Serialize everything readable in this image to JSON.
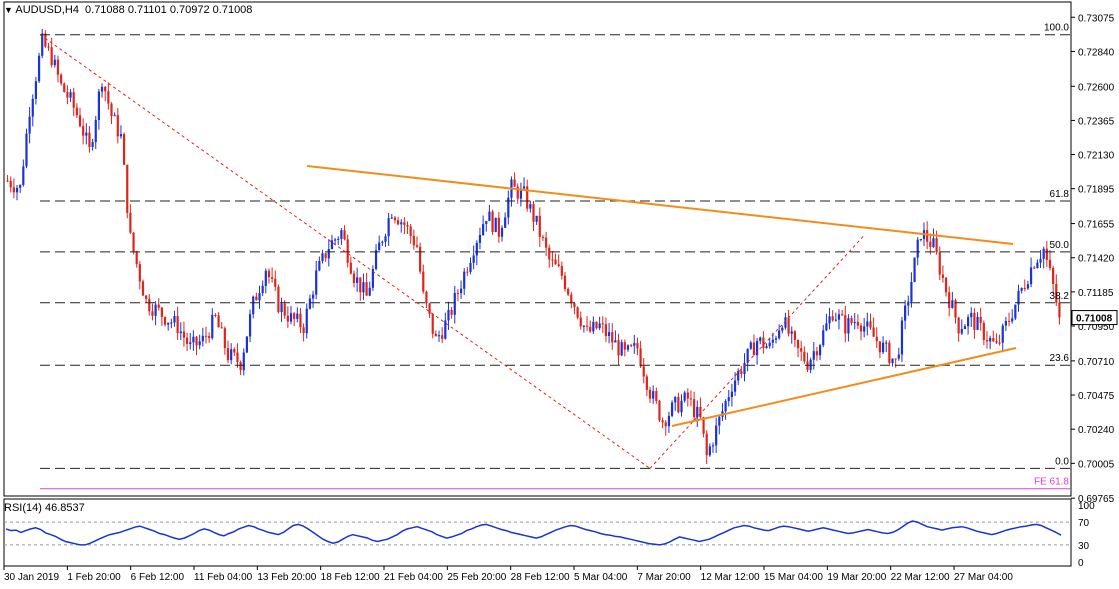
{
  "header": {
    "symbol": "AUDUSD,H4",
    "ohlc": "0.71088 0.71101 0.70972 0.71008"
  },
  "price_axis": {
    "min": 0.6978,
    "max": 0.7318,
    "ticks": [
      "0.73075",
      "0.72840",
      "0.72600",
      "0.72365",
      "0.72130",
      "0.71895",
      "0.71655",
      "0.71420",
      "0.71185",
      "0.70950",
      "0.70710",
      "0.70475",
      "0.70240",
      "0.70005",
      "0.69765"
    ],
    "current_label": "0.71008",
    "current_value": 0.71008
  },
  "fib_levels": [
    {
      "label": "100.0",
      "value": 0.72955
    },
    {
      "label": "61.8",
      "value": 0.7181
    },
    {
      "label": "50.0",
      "value": 0.7146
    },
    {
      "label": "38.2",
      "value": 0.7111
    },
    {
      "label": "23.6",
      "value": 0.7068
    },
    {
      "label": "0.0",
      "value": 0.6997
    }
  ],
  "fe_level": {
    "label": "FE 61.8",
    "value": 0.6983
  },
  "x_axis_labels": [
    "30 Jan 2019",
    "1 Feb 20:00",
    "6 Feb 12:00",
    "11 Feb 04:00",
    "13 Feb 20:00",
    "18 Feb 12:00",
    "21 Feb 04:00",
    "25 Feb 20:00",
    "28 Feb 12:00",
    "5 Mar 04:00",
    "7 Mar 20:00",
    "12 Mar 12:00",
    "15 Mar 04:00",
    "19 Mar 20:00",
    "22 Mar 12:00",
    "27 Mar 04:00"
  ],
  "rsi": {
    "label": "RSI(14) 46.8537",
    "levels": [
      "100",
      "70",
      "30",
      "0"
    ],
    "values": [
      58,
      55,
      56,
      52,
      55,
      58,
      60,
      57,
      51,
      48,
      45,
      40,
      36,
      34,
      32,
      30,
      30,
      33,
      37,
      41,
      45,
      48,
      50,
      52,
      55,
      58,
      61,
      63,
      60,
      57,
      54,
      50,
      48,
      45,
      42,
      40,
      42,
      46,
      50,
      55,
      58,
      56,
      52,
      48,
      46,
      50,
      53,
      58,
      61,
      64,
      62,
      58,
      55,
      52,
      50,
      48,
      52,
      58,
      64,
      66,
      63,
      58,
      52,
      46,
      40,
      36,
      33,
      35,
      40,
      45,
      48,
      46,
      44,
      42,
      38,
      36,
      38,
      40,
      44,
      48,
      54,
      58,
      60,
      62,
      59,
      56,
      53,
      48,
      45,
      42,
      44,
      47,
      50,
      55,
      58,
      62,
      65,
      66,
      63,
      60,
      57,
      55,
      52,
      50,
      48,
      46,
      44,
      42,
      44,
      48,
      52,
      56,
      59,
      62,
      64,
      63,
      60,
      57,
      55,
      53,
      50,
      48,
      47,
      45,
      44,
      42,
      40,
      38,
      36,
      34,
      32,
      31,
      30,
      32,
      35,
      40,
      44,
      42,
      40,
      38,
      36,
      38,
      40,
      44,
      48,
      52,
      56,
      60,
      62,
      64,
      63,
      60,
      58,
      56,
      55,
      58,
      61,
      63,
      62,
      60,
      58,
      56,
      54,
      56,
      58,
      60,
      58,
      56,
      54,
      52,
      50,
      51,
      53,
      55,
      57,
      55,
      53,
      51,
      50,
      52,
      56,
      62,
      68,
      72,
      70,
      66,
      62,
      60,
      58,
      56,
      58,
      60,
      61,
      62,
      60,
      57,
      54,
      52,
      50,
      48,
      50,
      53,
      56,
      58,
      60,
      62,
      63,
      65,
      66,
      64,
      60,
      56,
      52,
      47
    ]
  },
  "chart_data": {
    "type": "candlestick",
    "title": "AUDUSD,H4",
    "ylim": [
      0.6978,
      0.7318
    ],
    "anchors": [
      [
        0,
        0.7195
      ],
      [
        4,
        0.719
      ],
      [
        7,
        0.7245
      ],
      [
        11,
        0.729
      ],
      [
        14,
        0.728
      ],
      [
        17,
        0.726
      ],
      [
        20,
        0.725
      ],
      [
        23,
        0.7236
      ],
      [
        26,
        0.7215
      ],
      [
        30,
        0.7266
      ],
      [
        33,
        0.724
      ],
      [
        36,
        0.7225
      ],
      [
        39,
        0.7155
      ],
      [
        44,
        0.7112
      ],
      [
        49,
        0.7103
      ],
      [
        54,
        0.7095
      ],
      [
        58,
        0.708
      ],
      [
        62,
        0.7085
      ],
      [
        66,
        0.71
      ],
      [
        70,
        0.7075
      ],
      [
        74,
        0.707
      ],
      [
        78,
        0.711
      ],
      [
        82,
        0.7135
      ],
      [
        86,
        0.711
      ],
      [
        90,
        0.71
      ],
      [
        94,
        0.7095
      ],
      [
        98,
        0.713
      ],
      [
        102,
        0.715
      ],
      [
        106,
        0.716
      ],
      [
        110,
        0.713
      ],
      [
        114,
        0.7115
      ],
      [
        118,
        0.715
      ],
      [
        122,
        0.7175
      ],
      [
        126,
        0.7165
      ],
      [
        130,
        0.715
      ],
      [
        132,
        0.7115
      ],
      [
        136,
        0.7085
      ],
      [
        140,
        0.71
      ],
      [
        144,
        0.7125
      ],
      [
        148,
        0.715
      ],
      [
        152,
        0.7172
      ],
      [
        156,
        0.716
      ],
      [
        160,
        0.719
      ],
      [
        164,
        0.7185
      ],
      [
        168,
        0.7165
      ],
      [
        172,
        0.714
      ],
      [
        176,
        0.713
      ],
      [
        180,
        0.711
      ],
      [
        184,
        0.709
      ],
      [
        188,
        0.7095
      ],
      [
        192,
        0.7085
      ],
      [
        196,
        0.7075
      ],
      [
        200,
        0.708
      ],
      [
        204,
        0.705
      ],
      [
        208,
        0.703
      ],
      [
        212,
        0.704
      ],
      [
        216,
        0.7045
      ],
      [
        220,
        0.703
      ],
      [
        222,
        0.7005
      ],
      [
        226,
        0.703
      ],
      [
        230,
        0.7055
      ],
      [
        234,
        0.707
      ],
      [
        238,
        0.7085
      ],
      [
        242,
        0.708
      ],
      [
        246,
        0.71
      ],
      [
        250,
        0.708
      ],
      [
        254,
        0.707
      ],
      [
        258,
        0.7085
      ],
      [
        262,
        0.7105
      ],
      [
        266,
        0.7095
      ],
      [
        270,
        0.71
      ],
      [
        274,
        0.709
      ],
      [
        278,
        0.708
      ],
      [
        282,
        0.707
      ],
      [
        286,
        0.7115
      ],
      [
        290,
        0.716
      ],
      [
        294,
        0.715
      ],
      [
        298,
        0.712
      ],
      [
        302,
        0.7095
      ],
      [
        306,
        0.71
      ],
      [
        310,
        0.709
      ],
      [
        314,
        0.708
      ],
      [
        318,
        0.71
      ],
      [
        322,
        0.712
      ],
      [
        326,
        0.714
      ],
      [
        329,
        0.7148
      ],
      [
        332,
        0.7122
      ],
      [
        334,
        0.7101
      ]
    ],
    "n_candles": 335
  }
}
